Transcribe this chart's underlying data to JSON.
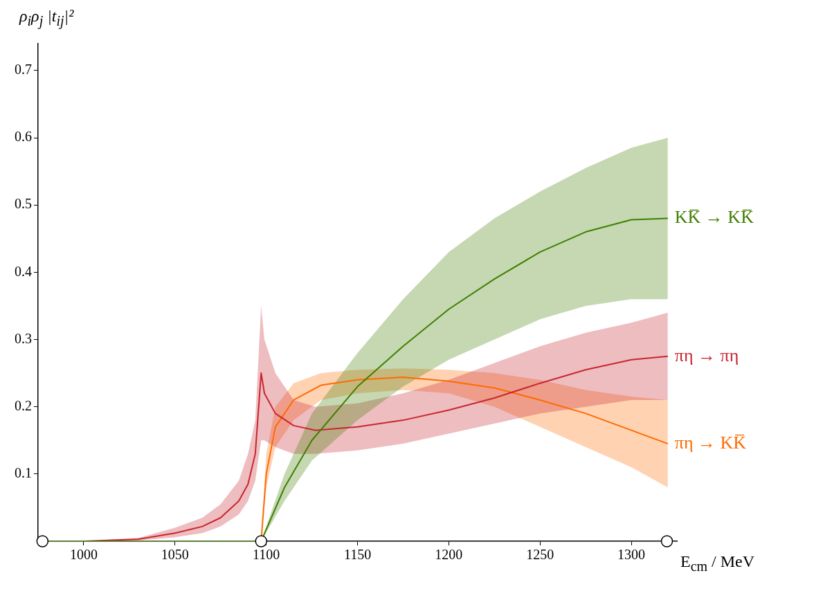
{
  "chart_data": {
    "type": "line",
    "xlabel": "E$_{cm}$ / MeV",
    "ylabel": "ρ$_{i}$ρ$_{j}$ |t$_{ij}$|²",
    "xlim": [
      975,
      1325
    ],
    "xticks": [
      1000,
      1050,
      1100,
      1150,
      1200,
      1250,
      1300
    ],
    "ylim": [
      0,
      0.74
    ],
    "yticks": [
      0.1,
      0.2,
      0.3,
      0.4,
      0.5,
      0.6,
      0.7
    ],
    "grid": false,
    "legend": false,
    "series": [
      {
        "name": "KK̅ → KK̅",
        "color": "#3f7f00",
        "x": [
          977.4,
          1097.2,
          1110,
          1125,
          1150,
          1175,
          1200,
          1225,
          1250,
          1275,
          1300,
          1320
        ],
        "values": [
          0,
          0,
          0.08,
          0.15,
          0.23,
          0.29,
          0.345,
          0.39,
          0.43,
          0.46,
          0.478,
          0.48
        ],
        "lower": [
          null,
          0,
          0.06,
          0.12,
          0.18,
          0.23,
          0.27,
          0.3,
          0.33,
          0.35,
          0.36,
          0.36
        ],
        "upper": [
          null,
          0,
          0.1,
          0.19,
          0.28,
          0.36,
          0.43,
          0.48,
          0.52,
          0.555,
          0.585,
          0.6
        ]
      },
      {
        "name": "πη → πη",
        "color": "#c8262f",
        "x": [
          977.4,
          1000,
          1030,
          1050,
          1065,
          1075,
          1085,
          1090,
          1094,
          1097.2,
          1099,
          1105,
          1115,
          1127,
          1150,
          1175,
          1200,
          1225,
          1250,
          1275,
          1300,
          1320
        ],
        "values": [
          0,
          0,
          0.003,
          0.012,
          0.022,
          0.035,
          0.06,
          0.085,
          0.13,
          0.25,
          0.22,
          0.19,
          0.172,
          0.165,
          0.17,
          0.18,
          0.195,
          0.213,
          0.235,
          0.255,
          0.27,
          0.275
        ],
        "lower": [
          0,
          0,
          0.001,
          0.006,
          0.012,
          0.022,
          0.04,
          0.06,
          0.09,
          0.15,
          0.15,
          0.14,
          0.13,
          0.13,
          0.135,
          0.145,
          0.16,
          0.175,
          0.19,
          0.2,
          0.21,
          0.21
        ],
        "upper": [
          0,
          0,
          0.005,
          0.02,
          0.035,
          0.055,
          0.09,
          0.13,
          0.18,
          0.35,
          0.3,
          0.25,
          0.21,
          0.2,
          0.205,
          0.22,
          0.24,
          0.265,
          0.29,
          0.31,
          0.325,
          0.34
        ]
      },
      {
        "name": "πη → KK̅",
        "color": "#ff6a00",
        "x": [
          977.4,
          1097.2,
          1100,
          1105,
          1115,
          1130,
          1150,
          1175,
          1200,
          1225,
          1250,
          1275,
          1300,
          1320
        ],
        "values": [
          0,
          0,
          0.1,
          0.17,
          0.21,
          0.232,
          0.24,
          0.244,
          0.238,
          0.228,
          0.21,
          0.19,
          0.165,
          0.145
        ],
        "lower": [
          null,
          0,
          0.08,
          0.14,
          0.18,
          0.21,
          0.22,
          0.225,
          0.22,
          0.2,
          0.17,
          0.14,
          0.11,
          0.08
        ],
        "upper": [
          null,
          0,
          0.13,
          0.2,
          0.235,
          0.25,
          0.255,
          0.257,
          0.255,
          0.25,
          0.24,
          0.225,
          0.215,
          0.21
        ]
      },
      {
        "type": "scatter",
        "color": "#000000",
        "marker": "circle",
        "x": [
          977.4,
          1097.2,
          1319.5
        ],
        "values": [
          0,
          0,
          0
        ]
      }
    ]
  }
}
